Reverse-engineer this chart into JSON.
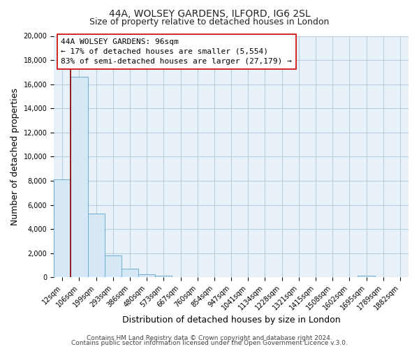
{
  "title": "44A, WOLSEY GARDENS, ILFORD, IG6 2SL",
  "subtitle": "Size of property relative to detached houses in London",
  "xlabel": "Distribution of detached houses by size in London",
  "ylabel": "Number of detached properties",
  "bar_labels": [
    "12sqm",
    "106sqm",
    "199sqm",
    "293sqm",
    "386sqm",
    "480sqm",
    "573sqm",
    "667sqm",
    "760sqm",
    "854sqm",
    "947sqm",
    "1041sqm",
    "1134sqm",
    "1228sqm",
    "1321sqm",
    "1415sqm",
    "1508sqm",
    "1602sqm",
    "1695sqm",
    "1789sqm",
    "1882sqm"
  ],
  "bar_values": [
    8100,
    16600,
    5300,
    1800,
    750,
    270,
    140,
    0,
    0,
    0,
    0,
    0,
    0,
    0,
    0,
    0,
    0,
    0,
    120,
    0,
    0
  ],
  "bar_color": "#d6e8f5",
  "bar_edge_color": "#6aaed6",
  "ylim": [
    0,
    20000
  ],
  "yticks": [
    0,
    2000,
    4000,
    6000,
    8000,
    10000,
    12000,
    14000,
    16000,
    18000,
    20000
  ],
  "vline_x": 0.5,
  "vline_color": "#8b0000",
  "annotation_title": "44A WOLSEY GARDENS: 96sqm",
  "annotation_line1": "← 17% of detached houses are smaller (5,554)",
  "annotation_line2": "83% of semi-detached houses are larger (27,179) →",
  "annotation_box_facecolor": "#ffffff",
  "annotation_box_edgecolor": "#cc0000",
  "footer1": "Contains HM Land Registry data © Crown copyright and database right 2024.",
  "footer2": "Contains public sector information licensed under the Open Government Licence v.3.0.",
  "plot_bg_color": "#e8f0f8",
  "fig_bg_color": "#ffffff",
  "grid_color": "#b8cfe0",
  "title_fontsize": 10,
  "subtitle_fontsize": 9,
  "axis_label_fontsize": 9,
  "tick_fontsize": 7,
  "annotation_fontsize": 8,
  "footer_fontsize": 6.5
}
